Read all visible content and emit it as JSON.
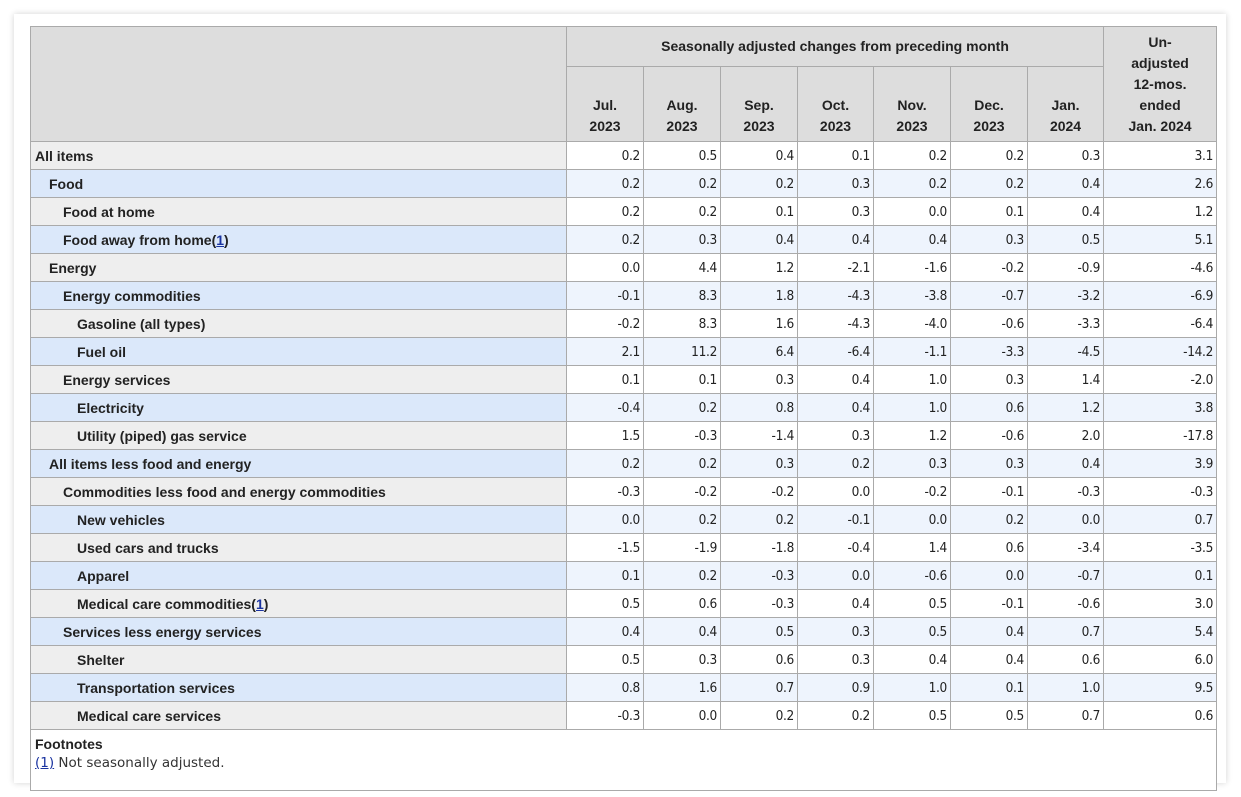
{
  "header": {
    "group_label": "Seasonally adjusted changes from preceding month",
    "months": [
      {
        "line1": "Jul.",
        "line2": "2023"
      },
      {
        "line1": "Aug.",
        "line2": "2023"
      },
      {
        "line1": "Sep.",
        "line2": "2023"
      },
      {
        "line1": "Oct.",
        "line2": "2023"
      },
      {
        "line1": "Nov.",
        "line2": "2023"
      },
      {
        "line1": "Dec.",
        "line2": "2023"
      },
      {
        "line1": "Jan.",
        "line2": "2024"
      }
    ],
    "unadjusted_lines": [
      "Un-",
      "adjusted",
      "12-mos.",
      "ended",
      "Jan. 2024"
    ]
  },
  "rows": [
    {
      "label": "All items",
      "indent": 0,
      "values": [
        "0.2",
        "0.5",
        "0.4",
        "0.1",
        "0.2",
        "0.2",
        "0.3",
        "3.1"
      ]
    },
    {
      "label": "Food",
      "indent": 1,
      "values": [
        "0.2",
        "0.2",
        "0.2",
        "0.3",
        "0.2",
        "0.2",
        "0.4",
        "2.6"
      ]
    },
    {
      "label": "Food at home",
      "indent": 2,
      "values": [
        "0.2",
        "0.2",
        "0.1",
        "0.3",
        "0.0",
        "0.1",
        "0.4",
        "1.2"
      ]
    },
    {
      "label": "Food away from home",
      "indent": 2,
      "footnote": "1",
      "values": [
        "0.2",
        "0.3",
        "0.4",
        "0.4",
        "0.4",
        "0.3",
        "0.5",
        "5.1"
      ]
    },
    {
      "label": "Energy",
      "indent": 1,
      "values": [
        "0.0",
        "4.4",
        "1.2",
        "-2.1",
        "-1.6",
        "-0.2",
        "-0.9",
        "-4.6"
      ]
    },
    {
      "label": "Energy commodities",
      "indent": 2,
      "values": [
        "-0.1",
        "8.3",
        "1.8",
        "-4.3",
        "-3.8",
        "-0.7",
        "-3.2",
        "-6.9"
      ]
    },
    {
      "label": "Gasoline (all types)",
      "indent": 3,
      "values": [
        "-0.2",
        "8.3",
        "1.6",
        "-4.3",
        "-4.0",
        "-0.6",
        "-3.3",
        "-6.4"
      ]
    },
    {
      "label": "Fuel oil",
      "indent": 3,
      "values": [
        "2.1",
        "11.2",
        "6.4",
        "-6.4",
        "-1.1",
        "-3.3",
        "-4.5",
        "-14.2"
      ]
    },
    {
      "label": "Energy services",
      "indent": 2,
      "values": [
        "0.1",
        "0.1",
        "0.3",
        "0.4",
        "1.0",
        "0.3",
        "1.4",
        "-2.0"
      ]
    },
    {
      "label": "Electricity",
      "indent": 3,
      "values": [
        "-0.4",
        "0.2",
        "0.8",
        "0.4",
        "1.0",
        "0.6",
        "1.2",
        "3.8"
      ]
    },
    {
      "label": "Utility (piped) gas service",
      "indent": 3,
      "values": [
        "1.5",
        "-0.3",
        "-1.4",
        "0.3",
        "1.2",
        "-0.6",
        "2.0",
        "-17.8"
      ]
    },
    {
      "label": "All items less food and energy",
      "indent": 1,
      "values": [
        "0.2",
        "0.2",
        "0.3",
        "0.2",
        "0.3",
        "0.3",
        "0.4",
        "3.9"
      ]
    },
    {
      "label": "Commodities less food and energy commodities",
      "indent": 2,
      "values": [
        "-0.3",
        "-0.2",
        "-0.2",
        "0.0",
        "-0.2",
        "-0.1",
        "-0.3",
        "-0.3"
      ]
    },
    {
      "label": "New vehicles",
      "indent": 3,
      "values": [
        "0.0",
        "0.2",
        "0.2",
        "-0.1",
        "0.0",
        "0.2",
        "0.0",
        "0.7"
      ]
    },
    {
      "label": "Used cars and trucks",
      "indent": 3,
      "values": [
        "-1.5",
        "-1.9",
        "-1.8",
        "-0.4",
        "1.4",
        "0.6",
        "-3.4",
        "-3.5"
      ]
    },
    {
      "label": "Apparel",
      "indent": 3,
      "values": [
        "0.1",
        "0.2",
        "-0.3",
        "0.0",
        "-0.6",
        "0.0",
        "-0.7",
        "0.1"
      ]
    },
    {
      "label": "Medical care commodities",
      "indent": 3,
      "footnote": "1",
      "values": [
        "0.5",
        "0.6",
        "-0.3",
        "0.4",
        "0.5",
        "-0.1",
        "-0.6",
        "3.0"
      ]
    },
    {
      "label": "Services less energy services",
      "indent": 2,
      "values": [
        "0.4",
        "0.4",
        "0.5",
        "0.3",
        "0.5",
        "0.4",
        "0.7",
        "5.4"
      ]
    },
    {
      "label": "Shelter",
      "indent": 3,
      "values": [
        "0.5",
        "0.3",
        "0.6",
        "0.3",
        "0.4",
        "0.4",
        "0.6",
        "6.0"
      ]
    },
    {
      "label": "Transportation services",
      "indent": 3,
      "values": [
        "0.8",
        "1.6",
        "0.7",
        "0.9",
        "1.0",
        "0.1",
        "1.0",
        "9.5"
      ]
    },
    {
      "label": "Medical care services",
      "indent": 3,
      "values": [
        "-0.3",
        "0.0",
        "0.2",
        "0.2",
        "0.5",
        "0.5",
        "0.7",
        "0.6"
      ]
    }
  ],
  "footnotes": {
    "title": "Footnotes",
    "items": [
      {
        "marker": "(1)",
        "text": " Not seasonally adjusted."
      }
    ]
  },
  "colors": {
    "header_bg": "#dddddd",
    "row_label_gray": "#eeeeee",
    "row_label_blue": "#dbe8fa",
    "row_value_blue": "#eef4fd",
    "link": "#1a33a0"
  }
}
